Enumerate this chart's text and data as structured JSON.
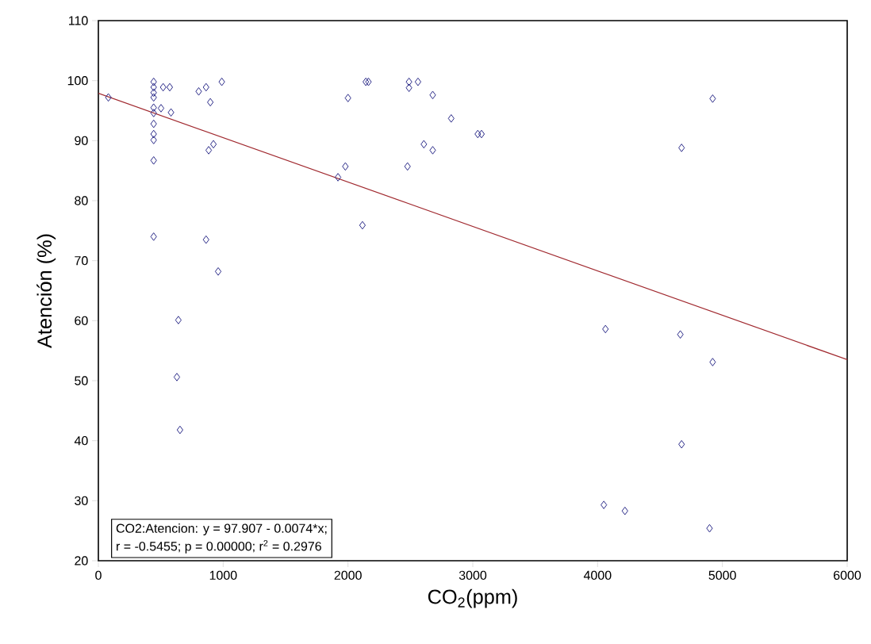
{
  "chart_data": {
    "type": "scatter",
    "xlabel": "CO$_{2}$(ppm)",
    "ylabel": "Atención (%)",
    "xlim": [
      0,
      6000
    ],
    "ylim": [
      20,
      110
    ],
    "xticks": [
      0,
      1000,
      2000,
      3000,
      4000,
      5000,
      6000
    ],
    "yticks": [
      20,
      30,
      40,
      50,
      60,
      70,
      80,
      90,
      100,
      110
    ],
    "grid": false,
    "annotations": [
      "CO2:Atencion:    y = 97.907 - 0.0074*x;",
      "r = -0.5455; p = 0.00000; r$^{2}$ = 0.2976"
    ],
    "series": [
      {
        "marker": "diamond",
        "color": "#1c1c80",
        "x": [
          80,
          443,
          443,
          443,
          443,
          443,
          443,
          443,
          443,
          443,
          443,
          443,
          519,
          572,
          502,
          582,
          804,
          863,
          989,
          897,
          922,
          884,
          863,
          960,
          641,
          629,
          654,
          2143,
          2164,
          2000,
          2489,
          2561,
          2489,
          2679,
          2827,
          3040,
          3070,
          2608,
          2679,
          1979,
          1920,
          2477,
          2116,
          4922,
          4673,
          4063,
          4663,
          4922,
          4673,
          4050,
          4219,
          4897
        ],
        "values": [
          97.2,
          99.8,
          98.9,
          98.0,
          97.2,
          95.5,
          94.6,
          92.8,
          91.1,
          90.1,
          86.7,
          74.0,
          98.9,
          98.9,
          95.4,
          94.7,
          98.2,
          98.9,
          99.8,
          96.4,
          89.4,
          88.4,
          73.5,
          68.2,
          60.1,
          50.6,
          41.8,
          99.8,
          99.8,
          97.1,
          99.8,
          99.8,
          98.8,
          97.6,
          93.7,
          91.1,
          91.1,
          89.4,
          88.4,
          85.7,
          83.9,
          85.7,
          75.9,
          97.0,
          88.8,
          58.6,
          57.7,
          53.1,
          39.4,
          29.3,
          28.3,
          25.4
        ]
      },
      {
        "type": "line",
        "marker": "none",
        "line_style": "solid",
        "color": "#a0282e",
        "x": [
          0,
          6000
        ],
        "values": [
          97.9,
          53.5
        ]
      }
    ]
  }
}
